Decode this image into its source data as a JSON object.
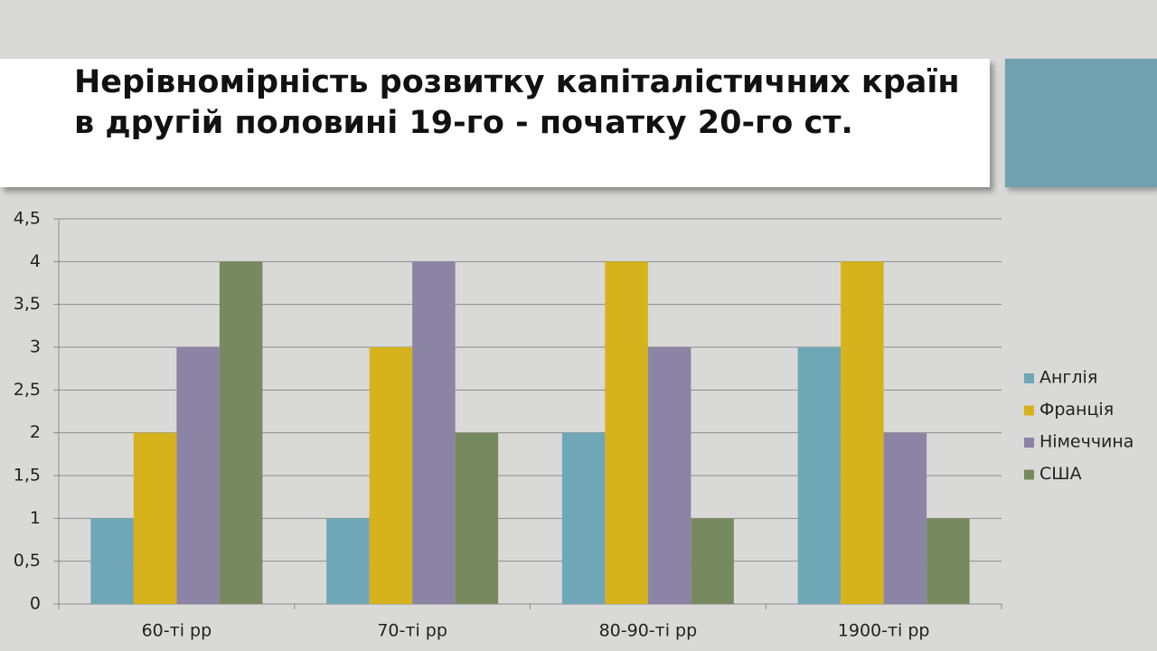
{
  "chart_data": {
    "type": "bar",
    "title": "Нерівномірність розвитку капіталістичних країн в другій половині 19-го - початку 20-го ст.",
    "categories": [
      "60-ті рр",
      "70-ті рр",
      "80-90-ті рр",
      "1900-ті рр"
    ],
    "series": [
      {
        "name": "Англія",
        "color": "#6fa7b6",
        "values": [
          1,
          1,
          2,
          3
        ]
      },
      {
        "name": "Франція",
        "color": "#d6b21c",
        "values": [
          2,
          3,
          4,
          4
        ]
      },
      {
        "name": "Німеччина",
        "color": "#8b84a4",
        "values": [
          3,
          4,
          3,
          2
        ]
      },
      {
        "name": "США",
        "color": "#778a5f",
        "values": [
          4,
          2,
          1,
          1
        ]
      }
    ],
    "ylim": [
      0,
      4.5
    ],
    "yticks": [
      0,
      {
        "value": 0.5,
        "label": "0,5"
      },
      1,
      {
        "value": 1.5,
        "label": "1,5"
      },
      2,
      {
        "value": 2.5,
        "label": "2,5"
      },
      3,
      {
        "value": 3.5,
        "label": "3,5"
      },
      4,
      {
        "value": 4.5,
        "label": "4,5"
      }
    ],
    "grid": true,
    "legend": "right"
  }
}
